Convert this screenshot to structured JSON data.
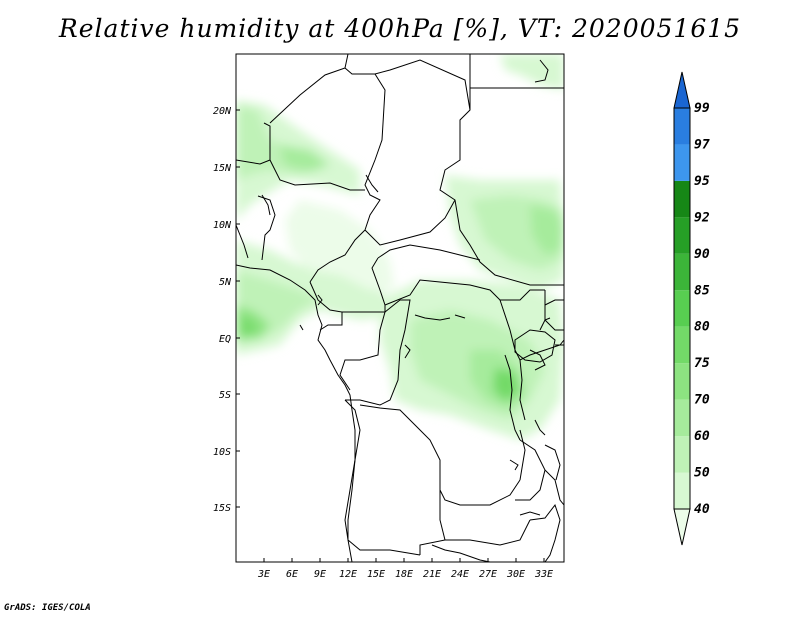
{
  "title": "Relative humidity at 400hPa [%], VT: 2020051615",
  "footer": "GrADS: IGES/COLA",
  "map": {
    "region": "Central Africa",
    "lat_labels": [
      "20N",
      "15N",
      "10N",
      "5N",
      "EQ",
      "5S",
      "10S",
      "15S"
    ],
    "lon_labels": [
      "3E",
      "6E",
      "9E",
      "12E",
      "15E",
      "18E",
      "21E",
      "24E",
      "27E",
      "30E",
      "33E"
    ],
    "lat_range": [
      -20,
      25
    ],
    "lon_range": [
      0,
      35
    ],
    "field": "relative humidity",
    "units": "%",
    "level": "400hPa"
  },
  "colorbar": {
    "levels": [
      "40",
      "50",
      "60",
      "70",
      "75",
      "80",
      "85",
      "90",
      "92",
      "95",
      "97",
      "99"
    ],
    "colors": [
      "#ecfce9",
      "#d7f8d2",
      "#bff2b7",
      "#a6eb9c",
      "#8de381",
      "#73da68",
      "#58ce51",
      "#3cb539",
      "#269f26",
      "#168716",
      "#3d96ee",
      "#2a7ee0",
      "#1a66d2"
    ]
  },
  "chart_data": {
    "type": "heatmap",
    "title": "Relative humidity at 400hPa [%], VT: 2020051615",
    "xlabel": "",
    "ylabel": "",
    "x_ticks": [
      "3E",
      "6E",
      "9E",
      "12E",
      "15E",
      "18E",
      "21E",
      "24E",
      "27E",
      "30E",
      "33E"
    ],
    "y_ticks": [
      "20N",
      "15N",
      "10N",
      "5N",
      "EQ",
      "5S",
      "10S",
      "15S"
    ],
    "levels": [
      40,
      50,
      60,
      70,
      75,
      80,
      85,
      90,
      92,
      95,
      97,
      99
    ],
    "xlim": [
      0,
      35
    ],
    "ylim": [
      -20,
      25
    ]
  }
}
